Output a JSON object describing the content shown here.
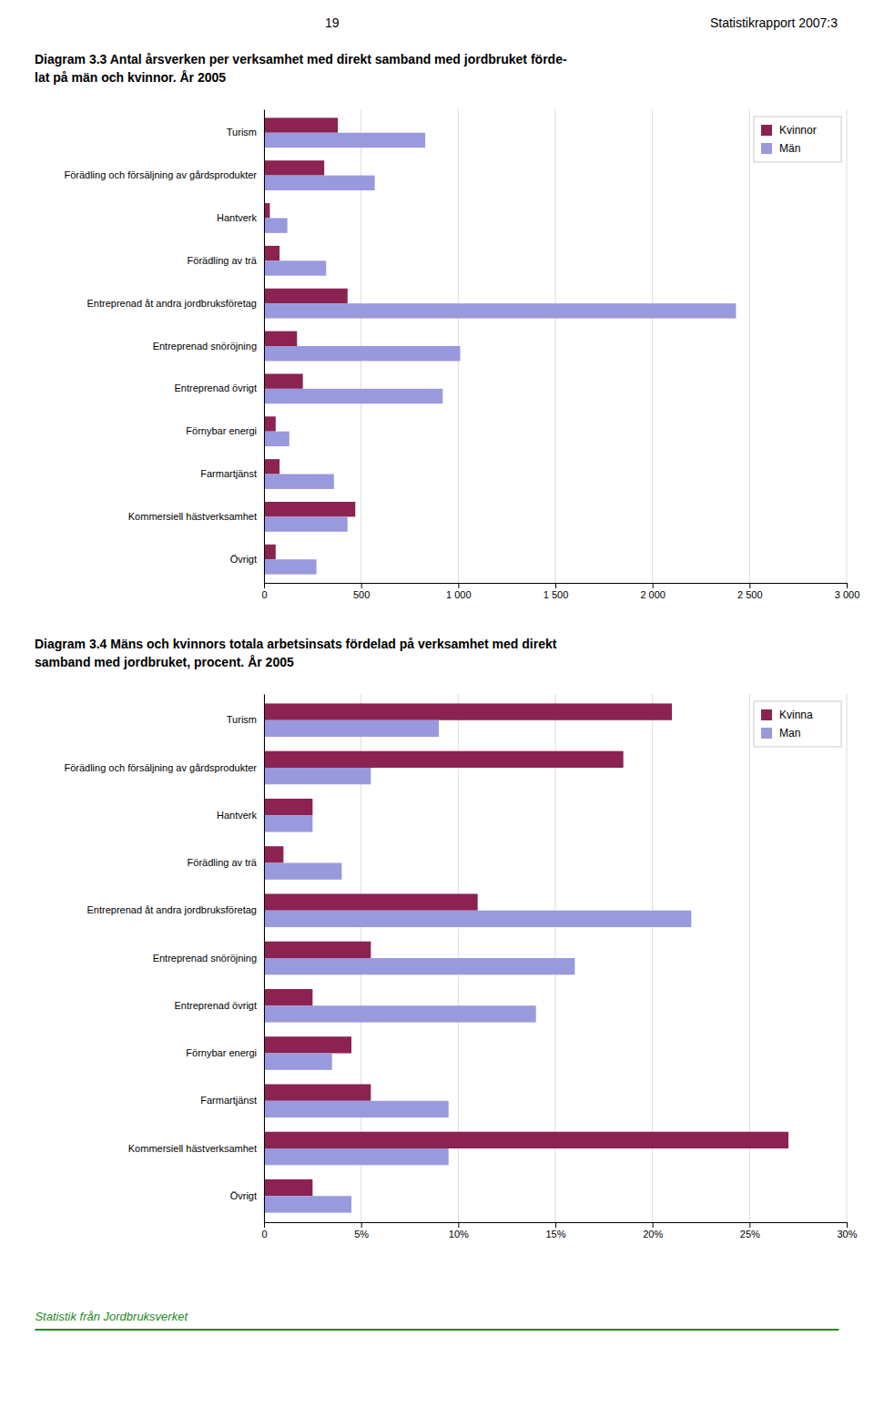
{
  "page_header_left": "19",
  "page_header_right": "Statistikrapport 2007:3",
  "footer_text": "Statistik från Jordbruksverket",
  "footer_color": "#228B22",
  "chart_data": [
    {
      "type": "bar",
      "orientation": "horizontal",
      "title": "Diagram 3.3  Antal årsverken per verksamhet med direkt samband med jordbruket förde-\nlat på män och kvinnor. År 2005",
      "categories": [
        "Övrigt",
        "Kommersiell hästverksamhet",
        "Farmartjänst",
        "Förnybar energi",
        "Entreprenad övrigt",
        "Entreprenad snöröjning",
        "Entreprenad åt andra jordbruksföretag",
        "Förädling av trä",
        "Hantverk",
        "Förädling och försäljning av gårdsprodukter",
        "Turism"
      ],
      "series": [
        {
          "name": "Kvinnor",
          "color": "#8B2252",
          "values": [
            60,
            470,
            80,
            60,
            200,
            170,
            430,
            80,
            30,
            310,
            380
          ]
        },
        {
          "name": "Män",
          "color": "#9999DD",
          "values": [
            270,
            430,
            360,
            130,
            920,
            1010,
            2430,
            320,
            120,
            570,
            830
          ]
        }
      ],
      "xlim": [
        0,
        3000
      ],
      "xticks": [
        0,
        500,
        {
          "value": 1000,
          "label": "1 000"
        },
        {
          "value": 1500,
          "label": "1 500"
        },
        {
          "value": 2000,
          "label": "2 000"
        },
        {
          "value": 2500,
          "label": "2 500"
        },
        {
          "value": 3000,
          "label": "3 000"
        }
      ],
      "grid": true,
      "legend": "top-right"
    },
    {
      "type": "bar",
      "orientation": "horizontal",
      "title": "Diagram 3.4  Mäns och kvinnors totala arbetsinsats fördelad på verksamhet med direkt\nsamband med jordbruket, procent. År 2005",
      "categories": [
        "Övrigt",
        "Kommersiell hästverksamhet",
        "Farmartjänst",
        "Förnybar energi",
        "Entreprenad övrigt",
        "Entreprenad snöröjning",
        "Entreprenad åt andra jordbruksföretag",
        "Förädling av trä",
        "Hantverk",
        "Förädling och försäljning av gårdsprodukter",
        "Turism"
      ],
      "series": [
        {
          "name": "Kvinna",
          "color": "#8B2252",
          "values": [
            0.025,
            0.27,
            0.055,
            0.045,
            0.025,
            0.055,
            0.11,
            0.01,
            0.025,
            0.185,
            0.21
          ]
        },
        {
          "name": "Man",
          "color": "#9999DD",
          "values": [
            0.045,
            0.095,
            0.095,
            0.035,
            0.14,
            0.16,
            0.22,
            0.04,
            0.025,
            0.055,
            0.09
          ]
        }
      ],
      "xlim": [
        0,
        0.3
      ],
      "xticks": [
        0,
        {
          "value": 0.05,
          "label": "5%"
        },
        {
          "value": 0.1,
          "label": "10%"
        },
        {
          "value": 0.15,
          "label": "15%"
        },
        {
          "value": 0.2,
          "label": "20%"
        },
        {
          "value": 0.25,
          "label": "25%"
        },
        {
          "value": 0.3,
          "label": "30%"
        }
      ],
      "grid": true,
      "legend": "top-right"
    }
  ]
}
